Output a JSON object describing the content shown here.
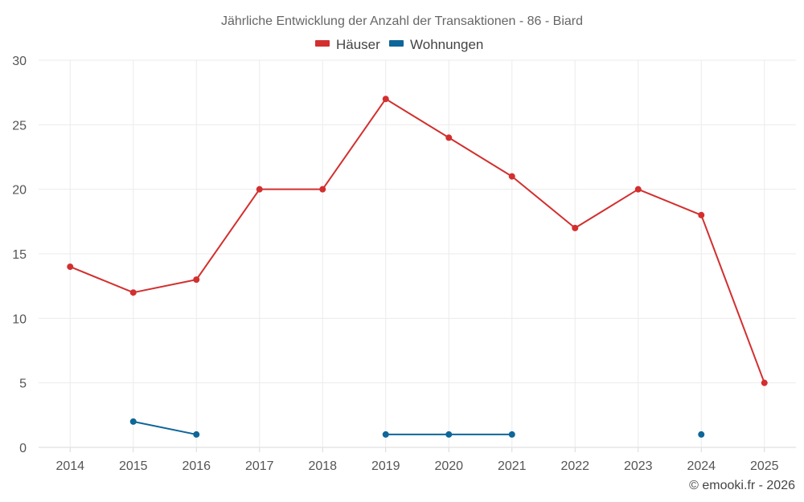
{
  "chart_data": {
    "type": "line",
    "title": "Jährliche Entwicklung der Anzahl der Transaktionen - 86 - Biard",
    "categories": [
      "2014",
      "2015",
      "2016",
      "2017",
      "2018",
      "2019",
      "2020",
      "2021",
      "2022",
      "2023",
      "2024",
      "2025"
    ],
    "ylim": [
      0,
      30
    ],
    "yticks": [
      0,
      5,
      10,
      15,
      20,
      25,
      30
    ],
    "grid": true,
    "legend_position": "top-center",
    "xlabel": "",
    "ylabel": "",
    "series": [
      {
        "name": "Häuser",
        "color": "#d32f2f",
        "values": [
          14,
          12,
          13,
          20,
          20,
          27,
          24,
          21,
          17,
          20,
          18,
          5
        ]
      },
      {
        "name": "Wohnungen",
        "color": "#0e6699",
        "values": [
          null,
          2,
          1,
          null,
          null,
          1,
          1,
          1,
          null,
          null,
          1,
          null
        ]
      }
    ]
  },
  "credit": "© emooki.fr - 2026"
}
